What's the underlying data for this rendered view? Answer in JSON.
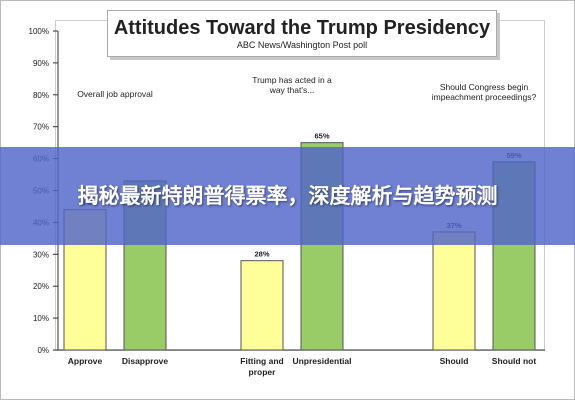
{
  "chart_data": {
    "type": "bar",
    "title": "Attitudes Toward the Trump Presidency",
    "subtitle": "ABC News/Washington Post poll",
    "ylim": [
      0,
      100
    ],
    "y_ticks": [
      "0%",
      "10%",
      "20%",
      "30%",
      "40%",
      "50%",
      "60%",
      "70%",
      "80%",
      "90%",
      "100%"
    ],
    "grid": false,
    "groups": [
      {
        "heading": "Overall job approval",
        "bars": [
          {
            "category": "Approve",
            "value": 44,
            "label": "44%",
            "color": "#ffff99"
          },
          {
            "category": "Disapprove",
            "value": 53,
            "label": "",
            "color": "#99cc66"
          }
        ]
      },
      {
        "heading": "Trump has acted in a way that's...",
        "bars": [
          {
            "category": "Fitting and proper",
            "value": 28,
            "label": "28%",
            "color": "#ffff99"
          },
          {
            "category": "Unpresidential",
            "value": 65,
            "label": "65%",
            "color": "#99cc66"
          }
        ]
      },
      {
        "heading": "Should Congress begin impeachment proceedings?",
        "bars": [
          {
            "category": "Should",
            "value": 37,
            "label": "37%",
            "color": "#ffff99"
          },
          {
            "category": "Should not",
            "value": 59,
            "label": "59%",
            "color": "#99cc66"
          }
        ]
      }
    ]
  },
  "overlay": {
    "banner_text": "揭秘最新特朗普得票率，深度解析与趋势预测",
    "banner_color": "#5064c8"
  }
}
